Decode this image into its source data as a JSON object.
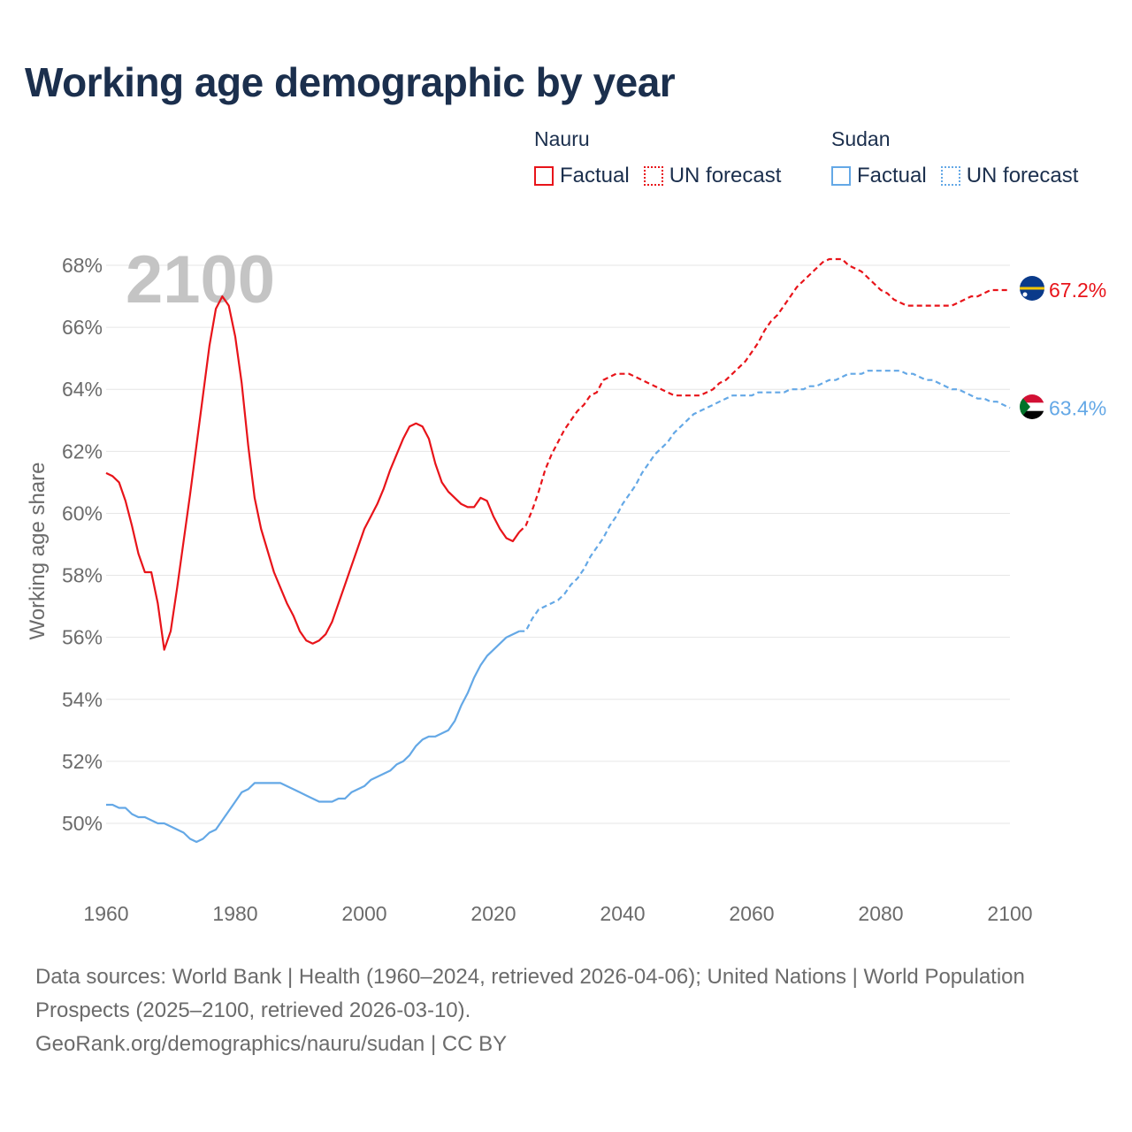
{
  "title": "Working age demographic by year",
  "legend": {
    "groups": [
      {
        "name": "Nauru",
        "color": "#e8141a",
        "factual_label": "Factual",
        "forecast_label": "UN forecast"
      },
      {
        "name": "Sudan",
        "color": "#64a8e6",
        "factual_label": "Factual",
        "forecast_label": "UN forecast"
      }
    ]
  },
  "footer": {
    "sources": "Data sources: World Bank | Health (1960–2024, retrieved 2026-04-06); United Nations | World Population Prospects (2025–2100, retrieved 2026-03-10).",
    "credit": "GeoRank.org/demographics/nauru/sudan | CC BY"
  },
  "chart_data": {
    "type": "line",
    "title": "Working age demographic by year",
    "xlabel": "",
    "ylabel": "Working age share",
    "year_watermark": "2100",
    "xlim": [
      1960,
      2100
    ],
    "ylim": [
      47.8,
      68.8
    ],
    "xticks": [
      "1960",
      "1980",
      "2000",
      "2020",
      "2040",
      "2060",
      "2080",
      "2100"
    ],
    "yticks": [
      "50%",
      "52%",
      "54%",
      "56%",
      "58%",
      "60%",
      "62%",
      "64%",
      "66%",
      "68%"
    ],
    "grid": true,
    "series": [
      {
        "name": "Nauru",
        "color": "#e8141a",
        "flag_icon": "nauru-flag-icon",
        "end_label": "67.2%",
        "factual": {
          "x": [
            1960,
            1961,
            1962,
            1963,
            1964,
            1965,
            1966,
            1967,
            1968,
            1969,
            1970,
            1971,
            1972,
            1973,
            1974,
            1975,
            1976,
            1977,
            1978,
            1979,
            1980,
            1981,
            1982,
            1983,
            1984,
            1985,
            1986,
            1987,
            1988,
            1989,
            1990,
            1991,
            1992,
            1993,
            1994,
            1995,
            1996,
            1997,
            1998,
            1999,
            2000,
            2001,
            2002,
            2003,
            2004,
            2005,
            2006,
            2007,
            2008,
            2009,
            2010,
            2011,
            2012,
            2013,
            2014,
            2015,
            2016,
            2017,
            2018,
            2019,
            2020,
            2021,
            2022,
            2023,
            2024
          ],
          "y": [
            61.3,
            61.2,
            61.0,
            60.4,
            59.6,
            58.7,
            58.1,
            58.1,
            57.1,
            55.6,
            56.2,
            57.6,
            59.1,
            60.6,
            62.2,
            63.8,
            65.4,
            66.6,
            67.0,
            66.7,
            65.7,
            64.2,
            62.2,
            60.5,
            59.5,
            58.8,
            58.1,
            57.6,
            57.1,
            56.7,
            56.2,
            55.9,
            55.8,
            55.9,
            56.1,
            56.5,
            57.1,
            57.7,
            58.3,
            58.9,
            59.5,
            59.9,
            60.3,
            60.8,
            61.4,
            61.9,
            62.4,
            62.8,
            62.9,
            62.8,
            62.4,
            61.6,
            61.0,
            60.7,
            60.5,
            60.3,
            60.2,
            60.2,
            60.5,
            60.4,
            59.9,
            59.5,
            59.2,
            59.1,
            59.4
          ]
        },
        "forecast": {
          "x": [
            2024,
            2025,
            2026,
            2027,
            2028,
            2029,
            2030,
            2031,
            2032,
            2033,
            2034,
            2035,
            2036,
            2037,
            2038,
            2039,
            2040,
            2041,
            2042,
            2043,
            2044,
            2045,
            2046,
            2047,
            2048,
            2049,
            2050,
            2051,
            2052,
            2053,
            2054,
            2055,
            2056,
            2057,
            2058,
            2059,
            2060,
            2061,
            2062,
            2063,
            2064,
            2065,
            2066,
            2067,
            2068,
            2069,
            2070,
            2071,
            2072,
            2073,
            2074,
            2075,
            2076,
            2077,
            2078,
            2079,
            2080,
            2081,
            2082,
            2083,
            2084,
            2085,
            2086,
            2087,
            2088,
            2089,
            2090,
            2091,
            2092,
            2093,
            2094,
            2095,
            2096,
            2097,
            2098,
            2099,
            2100
          ],
          "y": [
            59.4,
            59.6,
            60.1,
            60.7,
            61.4,
            61.9,
            62.3,
            62.7,
            63.0,
            63.3,
            63.5,
            63.8,
            63.9,
            64.3,
            64.4,
            64.5,
            64.5,
            64.5,
            64.4,
            64.3,
            64.2,
            64.1,
            64.0,
            63.9,
            63.8,
            63.8,
            63.8,
            63.8,
            63.8,
            63.9,
            64.0,
            64.2,
            64.3,
            64.5,
            64.7,
            64.9,
            65.2,
            65.5,
            65.9,
            66.2,
            66.4,
            66.7,
            67.0,
            67.3,
            67.5,
            67.7,
            67.9,
            68.1,
            68.2,
            68.2,
            68.2,
            68.0,
            67.9,
            67.8,
            67.6,
            67.4,
            67.2,
            67.1,
            66.9,
            66.8,
            66.7,
            66.7,
            66.7,
            66.7,
            66.7,
            66.7,
            66.7,
            66.7,
            66.8,
            66.9,
            67.0,
            67.0,
            67.1,
            67.2,
            67.2,
            67.2,
            67.2
          ]
        }
      },
      {
        "name": "Sudan",
        "color": "#64a8e6",
        "flag_icon": "sudan-flag-icon",
        "end_label": "63.4%",
        "factual": {
          "x": [
            1960,
            1961,
            1962,
            1963,
            1964,
            1965,
            1966,
            1967,
            1968,
            1969,
            1970,
            1971,
            1972,
            1973,
            1974,
            1975,
            1976,
            1977,
            1978,
            1979,
            1980,
            1981,
            1982,
            1983,
            1984,
            1985,
            1986,
            1987,
            1988,
            1989,
            1990,
            1991,
            1992,
            1993,
            1994,
            1995,
            1996,
            1997,
            1998,
            1999,
            2000,
            2001,
            2002,
            2003,
            2004,
            2005,
            2006,
            2007,
            2008,
            2009,
            2010,
            2011,
            2012,
            2013,
            2014,
            2015,
            2016,
            2017,
            2018,
            2019,
            2020,
            2021,
            2022,
            2023,
            2024
          ],
          "y": [
            50.6,
            50.6,
            50.5,
            50.5,
            50.3,
            50.2,
            50.2,
            50.1,
            50.0,
            50.0,
            49.9,
            49.8,
            49.7,
            49.5,
            49.4,
            49.5,
            49.7,
            49.8,
            50.1,
            50.4,
            50.7,
            51.0,
            51.1,
            51.3,
            51.3,
            51.3,
            51.3,
            51.3,
            51.2,
            51.1,
            51.0,
            50.9,
            50.8,
            50.7,
            50.7,
            50.7,
            50.8,
            50.8,
            51.0,
            51.1,
            51.2,
            51.4,
            51.5,
            51.6,
            51.7,
            51.9,
            52.0,
            52.2,
            52.5,
            52.7,
            52.8,
            52.8,
            52.9,
            53.0,
            53.3,
            53.8,
            54.2,
            54.7,
            55.1,
            55.4,
            55.6,
            55.8,
            56.0,
            56.1,
            56.2
          ]
        },
        "forecast": {
          "x": [
            2024,
            2025,
            2026,
            2027,
            2028,
            2029,
            2030,
            2031,
            2032,
            2033,
            2034,
            2035,
            2036,
            2037,
            2038,
            2039,
            2040,
            2041,
            2042,
            2043,
            2044,
            2045,
            2046,
            2047,
            2048,
            2049,
            2050,
            2051,
            2052,
            2053,
            2054,
            2055,
            2056,
            2057,
            2058,
            2059,
            2060,
            2061,
            2062,
            2063,
            2064,
            2065,
            2066,
            2067,
            2068,
            2069,
            2070,
            2071,
            2072,
            2073,
            2074,
            2075,
            2076,
            2077,
            2078,
            2079,
            2080,
            2081,
            2082,
            2083,
            2084,
            2085,
            2086,
            2087,
            2088,
            2089,
            2090,
            2091,
            2092,
            2093,
            2094,
            2095,
            2096,
            2097,
            2098,
            2099,
            2100
          ],
          "y": [
            56.2,
            56.2,
            56.6,
            56.9,
            57.0,
            57.1,
            57.2,
            57.4,
            57.7,
            57.9,
            58.2,
            58.6,
            58.9,
            59.2,
            59.6,
            59.9,
            60.3,
            60.6,
            60.9,
            61.3,
            61.6,
            61.9,
            62.1,
            62.3,
            62.6,
            62.8,
            63.0,
            63.2,
            63.3,
            63.4,
            63.5,
            63.6,
            63.7,
            63.8,
            63.8,
            63.8,
            63.8,
            63.9,
            63.9,
            63.9,
            63.9,
            63.9,
            64.0,
            64.0,
            64.0,
            64.1,
            64.1,
            64.2,
            64.3,
            64.3,
            64.4,
            64.5,
            64.5,
            64.5,
            64.6,
            64.6,
            64.6,
            64.6,
            64.6,
            64.6,
            64.5,
            64.5,
            64.4,
            64.3,
            64.3,
            64.2,
            64.1,
            64.0,
            64.0,
            63.9,
            63.8,
            63.7,
            63.7,
            63.6,
            63.6,
            63.5,
            63.4
          ]
        }
      }
    ]
  }
}
